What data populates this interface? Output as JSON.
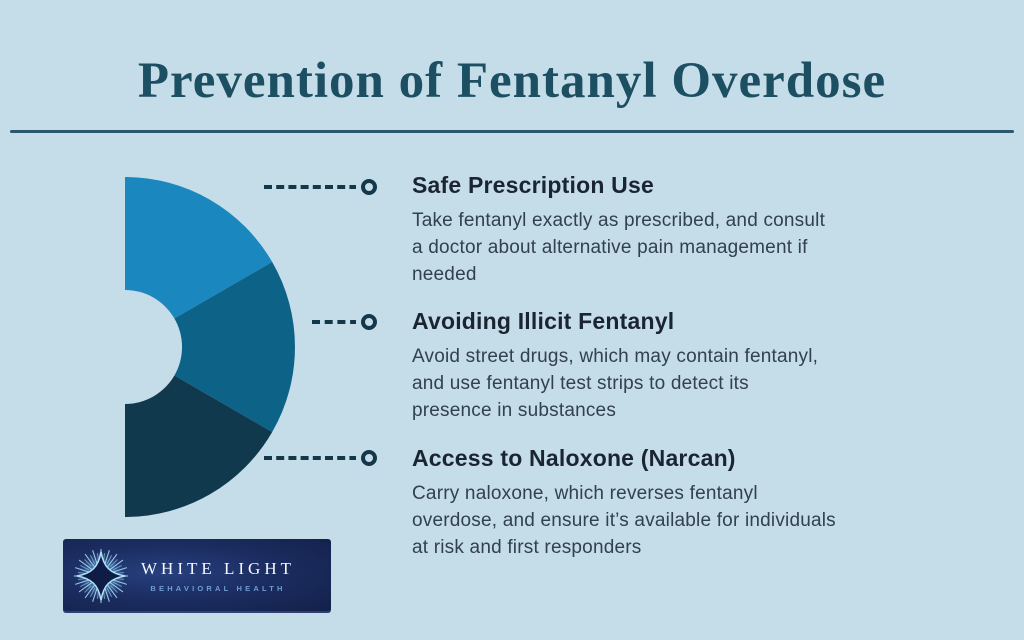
{
  "page": {
    "title": "Prevention of Fentanyl Overdose",
    "background_color": "#c5dde9",
    "title_color": "#1d4f63",
    "connector_color": "#14374a"
  },
  "chart_data": {
    "type": "pie",
    "variant": "half-donut",
    "title": "",
    "legend_position": "none",
    "categories": [
      "Safe Prescription Use",
      "Avoiding Illicit Fentanyl",
      "Access to Naloxone (Narcan)"
    ],
    "values": [
      33.3,
      33.3,
      33.3
    ],
    "colors": [
      "#1a87bf",
      "#0d6288",
      "#11394e"
    ]
  },
  "sections": [
    {
      "heading": "Safe Prescription Use",
      "body": "Take fentanyl exactly as prescribed, and consult\na doctor about alternative pain management if\nneeded"
    },
    {
      "heading": "Avoiding Illicit Fentanyl",
      "body": "Avoid street drugs, which may contain fentanyl,\nand use fentanyl test strips to detect its\npresence in substances"
    },
    {
      "heading": "Access to Naloxone (Narcan)",
      "body": "Carry naloxone, which reverses fentanyl\noverdose, and ensure it’s available for individuals\nat risk and first responders"
    }
  ],
  "logo": {
    "name": "WHITE LIGHT",
    "tagline": "BEHAVIORAL HEALTH",
    "background_color": "#1b2c60",
    "icon": "starburst-icon"
  }
}
